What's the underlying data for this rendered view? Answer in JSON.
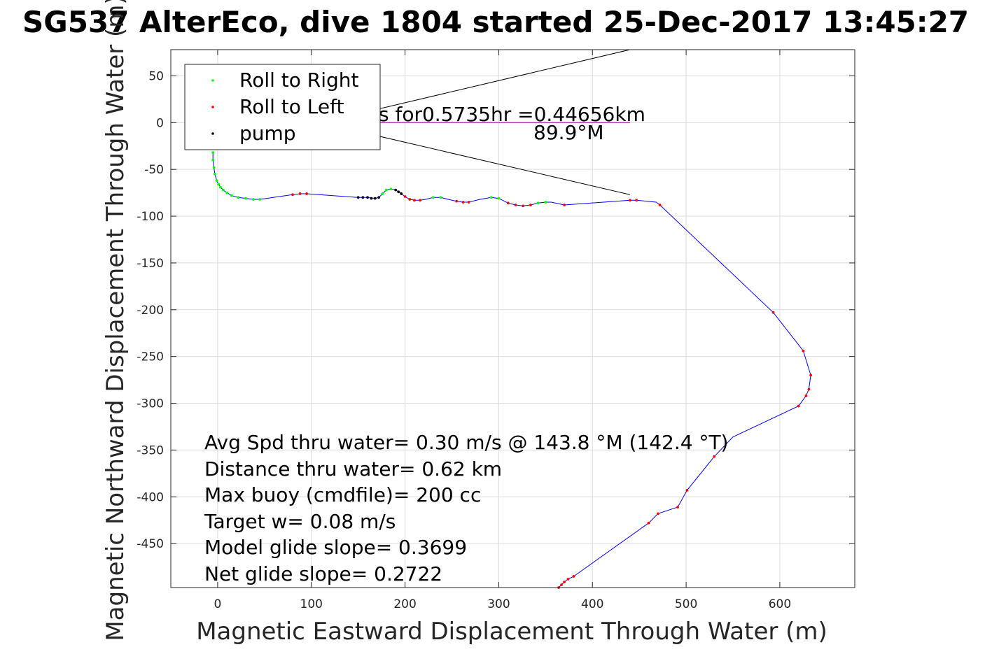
{
  "chart_data": {
    "type": "line",
    "title": "SG537 AlterEco, dive 1804 started 25-Dec-2017 13:45:27",
    "xlabel": "Magnetic Eastward Displacement Through Water (m)",
    "ylabel": "Magnetic Northward Displacement Through Water (m)",
    "xlim": [
      -50,
      680
    ],
    "ylim": [
      -497,
      78
    ],
    "xticks": [
      0,
      100,
      200,
      300,
      400,
      500,
      600
    ],
    "yticks": [
      50,
      0,
      -50,
      -100,
      -150,
      -200,
      -250,
      -300,
      -350,
      -400,
      -450
    ],
    "grid": true,
    "legend_position": "top-left",
    "legend": [
      {
        "label": "Roll to Right",
        "color": "#00ff00"
      },
      {
        "label": "Roll to Left",
        "color": "#ff0000"
      },
      {
        "label": "pump",
        "color": "#000000"
      }
    ],
    "series": [
      {
        "name": "track",
        "color": "#0000ff",
        "x": [
          -5,
          -5,
          -4,
          -3,
          -1,
          1,
          3,
          6,
          10,
          15,
          22,
          30,
          38,
          45,
          80,
          88,
          95,
          150,
          160,
          168,
          172,
          176,
          180,
          185,
          190,
          196,
          200,
          205,
          210,
          216,
          222,
          230,
          238,
          246,
          255,
          262,
          268,
          280,
          292,
          300,
          310,
          318,
          326,
          334,
          342,
          350,
          356,
          370,
          440,
          447,
          468,
          472,
          593,
          625,
          633,
          631,
          628,
          620,
          550,
          530,
          501,
          491,
          470,
          460,
          380,
          374,
          370,
          367,
          364
        ],
        "y": [
          -32,
          -40,
          -48,
          -55,
          -62,
          -66,
          -69,
          -72,
          -75,
          -78,
          -80,
          -81,
          -82,
          -82,
          -77,
          -76,
          -76,
          -80,
          -80,
          -81,
          -80,
          -76,
          -72,
          -71,
          -72,
          -76,
          -79,
          -82,
          -83,
          -83,
          -82,
          -80,
          -80,
          -82,
          -84,
          -85,
          -85,
          -82,
          -80,
          -81,
          -86,
          -88,
          -89,
          -88,
          -86,
          -85,
          -85,
          -88,
          -83,
          -83,
          -85,
          -88,
          -203,
          -244,
          -270,
          -285,
          -292,
          -303,
          -336,
          -357,
          -393,
          -411,
          -418,
          -428,
          -485,
          -488,
          -491,
          -494,
          -497
        ]
      }
    ],
    "roll_right_points": {
      "x": [
        -5,
        -5,
        -4,
        -3,
        -1,
        1,
        3,
        6,
        10,
        15,
        22,
        30,
        38,
        45,
        176,
        180,
        185,
        230,
        238,
        292,
        300,
        342,
        350
      ],
      "y": [
        -32,
        -40,
        -48,
        -55,
        -62,
        -66,
        -69,
        -72,
        -75,
        -78,
        -80,
        -81,
        -82,
        -82,
        -76,
        -72,
        -71,
        -80,
        -80,
        -80,
        -81,
        -86,
        -85
      ]
    },
    "roll_left_points": {
      "x": [
        80,
        88,
        95,
        200,
        205,
        210,
        216,
        255,
        262,
        268,
        310,
        318,
        326,
        334,
        370,
        440,
        447,
        472,
        593,
        625,
        633,
        631,
        628,
        620,
        530,
        501,
        491,
        470,
        460,
        380,
        374,
        370,
        367,
        364
      ],
      "y": [
        -77,
        -76,
        -76,
        -79,
        -82,
        -83,
        -83,
        -84,
        -85,
        -85,
        -86,
        -88,
        -89,
        -88,
        -88,
        -83,
        -83,
        -88,
        -203,
        -244,
        -270,
        -285,
        -292,
        -303,
        -357,
        -393,
        -411,
        -418,
        -428,
        -485,
        -488,
        -491,
        -494,
        -497
      ]
    },
    "pump_points": {
      "x": [
        150,
        155,
        160,
        164,
        168,
        172,
        190,
        193,
        196
      ],
      "y": [
        -80,
        -80,
        -80,
        -81,
        -81,
        -80,
        -72,
        -74,
        -76
      ]
    },
    "current_arrow": {
      "color": "#ff00ff",
      "x": [
        0,
        440
      ],
      "y": [
        0,
        0
      ],
      "head_x": [
        110,
        440,
        440
      ],
      "head_y": [
        0,
        78,
        -77
      ]
    },
    "annotations": {
      "current_line1": "s for0.5735hr =0.44656km",
      "current_line2": "89.9°M",
      "stats": [
        "Avg Spd thru water=  0.30 m/s @ 143.8 °M (142.4 °T)",
        "Distance thru water=  0.62 km",
        "Max buoy (cmdfile)= 200 cc",
        "Target w= 0.08 m/s",
        "Model glide slope= 0.3699",
        "Net glide slope= 0.2722"
      ]
    }
  }
}
